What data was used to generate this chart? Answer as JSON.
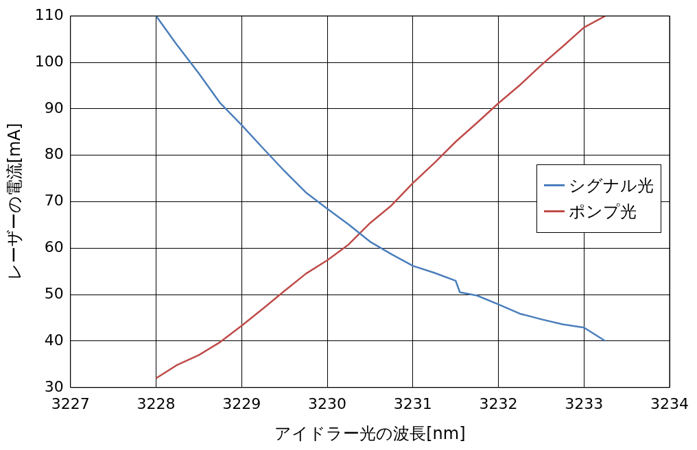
{
  "chart_data": {
    "type": "line",
    "xlabel": "アイドラー光の波長[nm]",
    "ylabel": "レーザーの電流[mA]",
    "xlim": [
      3227,
      3234
    ],
    "xticks": [
      3227,
      3228,
      3229,
      3230,
      3231,
      3232,
      3233,
      3234
    ],
    "ylim": [
      30,
      110
    ],
    "yticks": [
      30,
      40,
      50,
      60,
      70,
      80,
      90,
      100,
      110
    ],
    "grid": true,
    "legend": "right",
    "marker": "none",
    "line_style": "solid",
    "series": [
      {
        "name": "シグナル光",
        "color": "#4a7ebb",
        "x": [
          3228,
          3228.25,
          3228.5,
          3228.75,
          3229,
          3229.25,
          3229.5,
          3229.75,
          3230,
          3230.25,
          3230.5,
          3230.75,
          3231,
          3231.25,
          3231.5,
          3231.55,
          3231.75,
          3232,
          3232.25,
          3232.5,
          3232.75,
          3233,
          3233.25
        ],
        "values": [
          110,
          103.6,
          97.6,
          91.2,
          86.5,
          81.5,
          76.6,
          72,
          68.5,
          65.1,
          61.4,
          58.7,
          56.2,
          54.7,
          53,
          50.5,
          49.8,
          47.9,
          45.9,
          44.7,
          43.6,
          42.9,
          40
        ]
      },
      {
        "name": "ポンプ光",
        "color": "#be4b48",
        "x": [
          3228,
          3228.25,
          3228.5,
          3228.75,
          3229,
          3229.25,
          3229.5,
          3229.75,
          3230,
          3230.25,
          3230.5,
          3230.75,
          3231,
          3231.25,
          3231.5,
          3231.75,
          3232,
          3232.25,
          3232.5,
          3232.75,
          3233,
          3233.25
        ],
        "values": [
          32,
          34.9,
          37,
          39.8,
          43.3,
          47,
          50.8,
          54.5,
          57.4,
          60.8,
          65.4,
          69.2,
          74,
          78.3,
          82.9,
          87,
          91.2,
          95.1,
          99.4,
          103.4,
          107.5,
          110
        ]
      }
    ]
  }
}
